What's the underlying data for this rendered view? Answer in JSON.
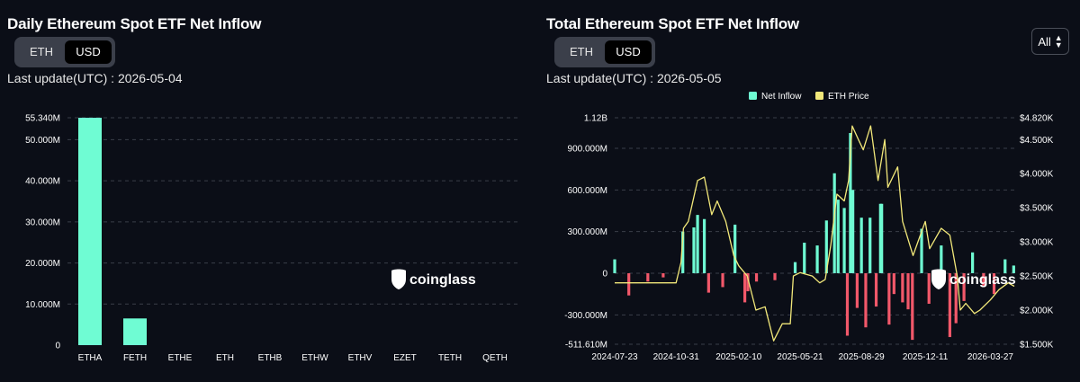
{
  "left": {
    "title": "Daily Ethereum Spot ETF Net Inflow",
    "toggle": [
      "ETH",
      "USD"
    ],
    "toggle_active": "USD",
    "last_update": "Last update(UTC) : 2026-05-04",
    "watermark": "coinglass"
  },
  "right": {
    "title": "Total Ethereum Spot ETF Net Inflow",
    "toggle": [
      "ETH",
      "USD"
    ],
    "toggle_active": "USD",
    "last_update": "Last update(UTC) : 2026-05-05",
    "range_select": "All",
    "watermark": "coinglass"
  },
  "colors": {
    "inflow": "#6ffcd3",
    "outflow": "#f2586a",
    "price": "#f2e87a",
    "background": "#0b0e17"
  },
  "chart_data": [
    {
      "type": "bar",
      "categories": [
        "ETHA",
        "FETH",
        "ETHE",
        "ETH",
        "ETHB",
        "ETHW",
        "ETHV",
        "EZET",
        "TETH",
        "QETH"
      ],
      "values": [
        55.34,
        6.5,
        0,
        0,
        0,
        0,
        0,
        0,
        0,
        0
      ],
      "unit": "M",
      "ylim": [
        0,
        55.34
      ],
      "yticks": [
        0,
        10,
        20,
        30,
        40,
        50,
        55.34
      ],
      "ytick_labels": [
        "0",
        "10.000M",
        "20.000M",
        "30.000M",
        "40.000M",
        "50.000M",
        "55.340M"
      ],
      "grid": true
    },
    {
      "type": "bar+line",
      "legend": [
        "Net Inflow",
        "ETH Price"
      ],
      "legend_position": "top-center",
      "xticks": [
        "2024-07-23",
        "2024-10-31",
        "2025-02-10",
        "2025-05-21",
        "2025-08-29",
        "2025-12-11",
        "2026-03-27"
      ],
      "x_range": [
        "2024-07-23",
        "2026-05-05"
      ],
      "ylim": [
        -511.61,
        1120
      ],
      "yticks": [
        -511.61,
        -300,
        0,
        300,
        600,
        900,
        1120
      ],
      "ytick_labels": [
        "-511.610M",
        "-300.000M",
        "0",
        "300.000M",
        "600.000M",
        "900.000M",
        "1.12B"
      ],
      "y2lim": [
        1500,
        4820
      ],
      "y2ticks": [
        1500,
        2000,
        2500,
        3000,
        3500,
        4000,
        4500,
        4820
      ],
      "y2tick_labels": [
        "$1.500K",
        "$2.000K",
        "$2.500K",
        "$3.000K",
        "$3.500K",
        "$4.000K",
        "$4.500K",
        "$4.820K"
      ],
      "price_series": {
        "name": "ETH Price",
        "x": [
          "2024-07-23",
          "2024-08-05",
          "2024-09-01",
          "2024-10-01",
          "2024-10-31",
          "2024-11-08",
          "2024-11-12",
          "2024-11-20",
          "2024-12-05",
          "2024-12-16",
          "2024-12-28",
          "2025-01-06",
          "2025-01-20",
          "2025-02-02",
          "2025-02-10",
          "2025-02-24",
          "2025-03-10",
          "2025-03-25",
          "2025-04-08",
          "2025-04-22",
          "2025-05-05",
          "2025-05-10",
          "2025-05-21",
          "2025-06-10",
          "2025-06-22",
          "2025-07-01",
          "2025-07-10",
          "2025-07-20",
          "2025-08-01",
          "2025-08-08",
          "2025-08-14",
          "2025-08-24",
          "2025-09-01",
          "2025-09-13",
          "2025-09-25",
          "2025-10-06",
          "2025-10-11",
          "2025-10-27",
          "2025-11-04",
          "2025-11-21",
          "2025-12-03",
          "2025-12-11",
          "2025-12-18",
          "2026-01-06",
          "2026-01-20",
          "2026-02-01",
          "2026-02-06",
          "2026-02-15",
          "2026-03-01",
          "2026-03-10",
          "2026-03-27",
          "2026-04-10",
          "2026-04-25",
          "2026-05-05"
        ],
        "y": [
          2400,
          2400,
          2400,
          2400,
          2400,
          2700,
          3200,
          3300,
          3900,
          3950,
          3400,
          3600,
          3300,
          2800,
          2650,
          2500,
          2000,
          2050,
          1550,
          1800,
          1800,
          2500,
          2550,
          2500,
          2400,
          2450,
          2950,
          3700,
          3600,
          3900,
          4700,
          4500,
          4350,
          4700,
          3900,
          4500,
          3800,
          4100,
          3300,
          2800,
          3100,
          3300,
          2900,
          3200,
          3100,
          2500,
          2000,
          2100,
          1950,
          2000,
          2150,
          2300,
          2400,
          2350
        ]
      },
      "flow_series": {
        "name": "Net Inflow",
        "x": [
          "2024-07-23",
          "2024-08-15",
          "2024-09-15",
          "2024-10-10",
          "2024-11-11",
          "2024-11-29",
          "2024-12-05",
          "2024-12-16",
          "2024-12-23",
          "2025-01-15",
          "2025-02-04",
          "2025-02-20",
          "2025-02-25",
          "2025-03-11",
          "2025-04-10",
          "2025-05-13",
          "2025-05-28",
          "2025-06-18",
          "2025-07-03",
          "2025-07-16",
          "2025-07-22",
          "2025-08-01",
          "2025-08-06",
          "2025-08-11",
          "2025-08-15",
          "2025-08-22",
          "2025-08-29",
          "2025-09-05",
          "2025-09-12",
          "2025-09-22",
          "2025-09-29",
          "2025-10-01",
          "2025-10-13",
          "2025-10-21",
          "2025-11-04",
          "2025-11-13",
          "2025-11-20",
          "2025-12-05",
          "2025-12-17",
          "2026-01-06",
          "2026-01-20",
          "2026-01-30",
          "2026-02-12",
          "2026-02-26",
          "2026-03-16",
          "2026-04-02",
          "2026-04-20",
          "2026-05-04"
        ],
        "values": [
          100,
          -160,
          -60,
          -30,
          300,
          330,
          420,
          390,
          -140,
          -100,
          350,
          -210,
          -130,
          -60,
          -50,
          80,
          220,
          200,
          380,
          720,
          530,
          470,
          -450,
          1010,
          600,
          -250,
          400,
          -390,
          400,
          -240,
          500,
          500,
          -370,
          -150,
          -210,
          -260,
          -480,
          320,
          -220,
          200,
          -460,
          -360,
          -200,
          150,
          -100,
          -150,
          100,
          55.34
        ]
      }
    }
  ]
}
